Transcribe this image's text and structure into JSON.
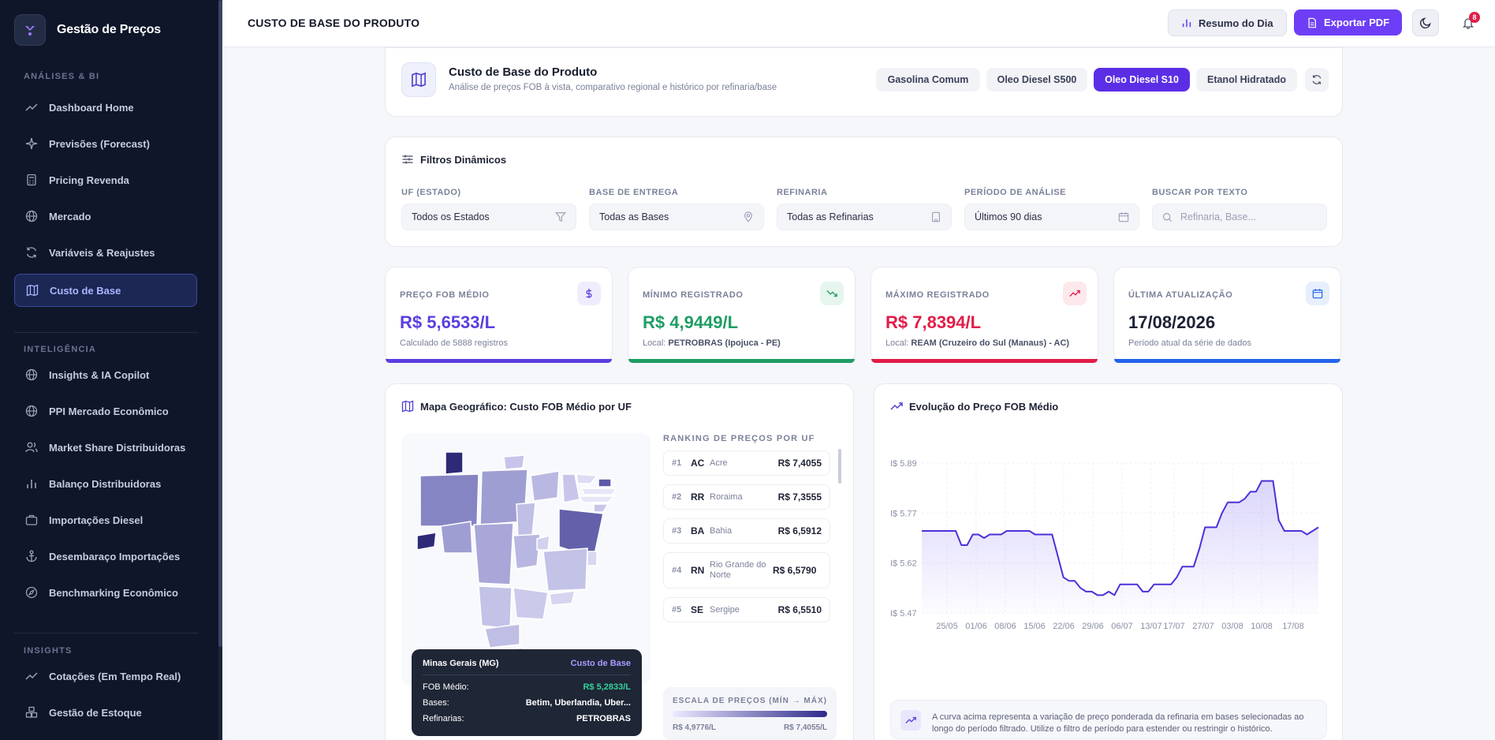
{
  "sidebar": {
    "brand": "Gestão de Preços",
    "sections": [
      {
        "title": "ANÁLISES & BI",
        "items": [
          {
            "label": "Dashboard Home",
            "icon": "trend-line-icon"
          },
          {
            "label": "Previsões (Forecast)",
            "icon": "sparkles-icon"
          },
          {
            "label": "Pricing Revenda",
            "icon": "calculator-icon"
          },
          {
            "label": "Mercado",
            "icon": "globe-icon"
          },
          {
            "label": "Variáveis & Reajustes",
            "icon": "refresh-icon"
          },
          {
            "label": "Custo de Base",
            "icon": "map-icon",
            "active": true
          }
        ]
      },
      {
        "title": "INTELIGÊNCIA",
        "items": [
          {
            "label": "Insights & IA Copilot",
            "icon": "globe-icon"
          },
          {
            "label": "PPI Mercado Econômico",
            "icon": "globe-icon"
          },
          {
            "label": "Market Share Distribuidoras",
            "icon": "users-icon"
          },
          {
            "label": "Balanço Distribuidoras",
            "icon": "bar-chart-icon"
          },
          {
            "label": "Importações Diesel",
            "icon": "briefcase-icon"
          },
          {
            "label": "Desembaraço Importações",
            "icon": "anchor-icon"
          },
          {
            "label": "Benchmarking Econômico",
            "icon": "compass-icon"
          }
        ]
      },
      {
        "title": "INSIGHTS",
        "items": [
          {
            "label": "Cotações (Em Tempo Real)",
            "icon": "trend-line-icon"
          },
          {
            "label": "Gestão de Estoque",
            "icon": "boxes-icon"
          }
        ]
      }
    ]
  },
  "header": {
    "title": "CUSTO DE BASE DO PRODUTO",
    "summary_label": "Resumo do Dia",
    "export_label": "Exportar PDF",
    "notifications": "8"
  },
  "product": {
    "title": "Custo de Base do Produto",
    "subtitle": "Análise de preços FOB à vista, comparativo regional e histórico por refinaria/base",
    "tabs": [
      "Gasolina Comum",
      "Oleo Diesel S500",
      "Oleo Diesel S10",
      "Etanol Hidratado"
    ],
    "active_tab": 2
  },
  "filters": {
    "title": "Filtros Dinâmicos",
    "fields": [
      {
        "label": "UF (ESTADO)",
        "value": "Todos os Estados"
      },
      {
        "label": "BASE DE ENTREGA",
        "value": "Todas as Bases"
      },
      {
        "label": "REFINARIA",
        "value": "Todas as Refinarias"
      },
      {
        "label": "PERÍODO DE ANÁLISE",
        "value": "Últimos 90 dias"
      },
      {
        "label": "BUSCAR POR TEXTO",
        "placeholder": "Refinaria, Base..."
      }
    ]
  },
  "kpis": [
    {
      "label": "PREÇO FOB MÉDIO",
      "value": "R$ 5,6533/L",
      "sub": "Calculado de 5888 registros",
      "color": "#5b3ee0"
    },
    {
      "label": "MÍNIMO REGISTRADO",
      "value": "R$ 4,9449/L",
      "sub_prefix": "Local:",
      "sub_strong": "PETROBRAS (Ipojuca - PE)",
      "color": "#1f9d63"
    },
    {
      "label": "MÁXIMO REGISTRADO",
      "value": "R$ 7,8394/L",
      "sub_prefix": "Local:",
      "sub_strong": "REAM (Cruzeiro do Sul (Manaus) - AC)",
      "color": "#e11d48"
    },
    {
      "label": "ÚLTIMA ATUALIZAÇÃO",
      "value": "17/08/2026",
      "sub": "Período atual da série de dados",
      "color": "#2563eb"
    }
  ],
  "map": {
    "title": "Mapa Geográfico: Custo FOB Médio por UF",
    "ranking_title": "RANKING DE PREÇOS POR UF",
    "ranking": [
      {
        "pos": "#1",
        "uf": "AC",
        "name": "Acre",
        "value": "R$ 7,4055"
      },
      {
        "pos": "#2",
        "uf": "RR",
        "name": "Roraima",
        "value": "R$ 7,3555"
      },
      {
        "pos": "#3",
        "uf": "BA",
        "name": "Bahia",
        "value": "R$ 6,5912"
      },
      {
        "pos": "#4",
        "uf": "RN",
        "name": "Rio Grande do Norte",
        "value": "R$ 6,5790"
      },
      {
        "pos": "#5",
        "uf": "SE",
        "name": "Sergipe",
        "value": "R$ 6,5510"
      }
    ],
    "scale_title": "ESCALA DE PREÇOS (MÍN → MÁX)",
    "scale_min": "R$ 4,9776/L",
    "scale_max": "R$ 7,4055/L",
    "tooltip": {
      "state": "Minas Gerais (MG)",
      "tag": "Custo de Base",
      "fob_label": "FOB Médio:",
      "fob_value": "R$ 5,2833/L",
      "bases_label": "Bases:",
      "bases_value": "Betim, Uberlandia, Uber...",
      "ref_label": "Refinarias:",
      "ref_value": "PETROBRAS"
    }
  },
  "chart": {
    "title": "Evolução do Preço FOB Médio",
    "note": "A curva acima representa a variação de preço ponderada da refinaria em bases selecionadas ao longo do período filtrado. Utilize o filtro de período para estender ou restringir o histórico."
  },
  "chart_data": {
    "type": "area",
    "x_ticks": [
      "25/05",
      "01/06",
      "08/06",
      "15/06",
      "22/06",
      "29/06",
      "06/07",
      "13/07",
      "17/07",
      "27/07",
      "03/08",
      "10/08",
      "17/08"
    ],
    "y_ticks": [
      "I$ 5.89",
      "I$ 5.77",
      "I$ 5.62",
      "I$ 5.47"
    ],
    "ylim": [
      5.47,
      5.89
    ],
    "grid": true,
    "series": [
      {
        "values": [
          5.7,
          5.7,
          5.7,
          5.7,
          5.7,
          5.7,
          5.7,
          5.66,
          5.66,
          5.69,
          5.69,
          5.68,
          5.69,
          5.69,
          5.69,
          5.7,
          5.7,
          5.7,
          5.7,
          5.7,
          5.69,
          5.69,
          5.69,
          5.69,
          5.63,
          5.57,
          5.56,
          5.56,
          5.54,
          5.53,
          5.53,
          5.52,
          5.52,
          5.53,
          5.52,
          5.55,
          5.55,
          5.55,
          5.55,
          5.53,
          5.53,
          5.55,
          5.55,
          5.55,
          5.55,
          5.57,
          5.6,
          5.6,
          5.6,
          5.65,
          5.71,
          5.71,
          5.71,
          5.75,
          5.78,
          5.78,
          5.78,
          5.79,
          5.81,
          5.81,
          5.84,
          5.84,
          5.84,
          5.73,
          5.7,
          5.7,
          5.7,
          5.7,
          5.69,
          5.7,
          5.71
        ]
      }
    ]
  }
}
